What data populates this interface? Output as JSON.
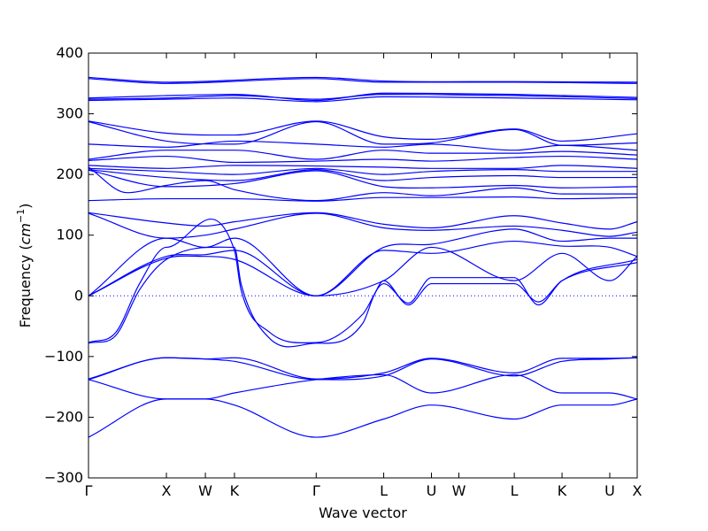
{
  "chart_data": {
    "type": "line",
    "title": "",
    "xlabel": "Wave vector",
    "ylabel": "Frequency (cm⁻¹)",
    "ylabel_parts": {
      "prefix": "Frequency (",
      "unit": "cm",
      "exponent": "−1",
      "suffix": ")"
    },
    "ylim": [
      -300,
      400
    ],
    "yticks": [
      -300,
      -200,
      -100,
      0,
      100,
      200,
      300,
      400
    ],
    "xlim": [
      0,
      100
    ],
    "xticks": [
      {
        "label": "Γ",
        "x": 0
      },
      {
        "label": "X",
        "x": 14.2
      },
      {
        "label": "W",
        "x": 21.3
      },
      {
        "label": "K",
        "x": 26.6
      },
      {
        "label": "Γ",
        "x": 41.5
      },
      {
        "label": "L",
        "x": 53.8
      },
      {
        "label": "U",
        "x": 62.5
      },
      {
        "label": "W",
        "x": 67.5
      },
      {
        "label": "L",
        "x": 77.6
      },
      {
        "label": "K",
        "x": 86.3
      },
      {
        "label": "U",
        "x": 95.0
      },
      {
        "label": "X",
        "x": 100
      }
    ],
    "zero_line": true,
    "grid": false,
    "legend": "none",
    "series_color": "#0000ff",
    "band_groups": [
      {
        "name": "top",
        "bands": [
          {
            "x": [
              0,
              14.2,
              41.5,
              53.8,
              77.6,
              100
            ],
            "y": [
              360,
              352,
              360,
              354,
              353,
              352
            ]
          },
          {
            "x": [
              0,
              14.2,
              41.5,
              53.8,
              77.6,
              100
            ],
            "y": [
              358,
              350,
              358,
              352,
              352,
              350
            ]
          }
        ]
      },
      {
        "name": "upper-mid",
        "bands": [
          {
            "x": [
              0,
              14.2,
              26.6,
              41.5,
              53.8,
              77.6,
              100
            ],
            "y": [
              326,
              330,
              332,
              322,
              334,
              332,
              327
            ]
          },
          {
            "x": [
              0,
              14.2,
              26.6,
              41.5,
              53.8,
              77.6,
              100
            ],
            "y": [
              324,
              326,
              330,
              324,
              332,
              330,
              325
            ]
          },
          {
            "x": [
              0,
              14.2,
              26.6,
              41.5,
              53.8,
              77.6,
              100
            ],
            "y": [
              322,
              324,
              326,
              320,
              328,
              326,
              323
            ]
          }
        ]
      },
      {
        "name": "optical",
        "bands": [
          {
            "x": [
              0,
              14.2,
              26.6,
              41.5,
              53.8,
              62.5,
              77.6,
              86.3,
              100
            ],
            "y": [
              288,
              268,
              265,
              288,
              262,
              258,
              275,
              255,
              267
            ]
          },
          {
            "x": [
              0,
              14.2,
              26.6,
              41.5,
              53.8,
              62.5,
              77.6,
              86.3,
              100
            ],
            "y": [
              287,
              255,
              250,
              287,
              250,
              252,
              274,
              248,
              252
            ]
          },
          {
            "x": [
              0,
              14.2,
              26.6,
              41.5,
              53.8,
              62.5,
              77.6,
              86.3,
              100
            ],
            "y": [
              250,
              245,
              255,
              250,
              245,
              250,
              240,
              248,
              240
            ]
          },
          {
            "x": [
              0,
              14.2,
              26.6,
              41.5,
              53.8,
              62.5,
              77.6,
              86.3,
              100
            ],
            "y": [
              225,
              240,
              240,
              225,
              240,
              235,
              235,
              238,
              232
            ]
          },
          {
            "x": [
              0,
              14.2,
              26.6,
              41.5,
              53.8,
              62.5,
              77.6,
              86.3,
              100
            ],
            "y": [
              223,
              230,
              220,
              222,
              225,
              222,
              228,
              230,
              225
            ]
          },
          {
            "x": [
              0,
              14.2,
              26.6,
              41.5,
              53.8,
              62.5,
              77.6,
              86.3,
              100
            ],
            "y": [
              215,
              210,
              215,
              214,
              212,
              210,
              210,
              215,
              210
            ]
          },
          {
            "x": [
              0,
              14.2,
              26.6,
              41.5,
              53.8,
              62.5,
              77.6,
              86.3,
              100
            ],
            "y": [
              210,
              205,
              200,
              210,
              200,
              205,
              208,
              205,
              205
            ]
          },
          {
            "x": [
              0,
              14.2,
              26.6,
              41.5,
              53.8,
              62.5,
              77.6,
              86.3,
              100
            ],
            "y": [
              208,
              195,
              190,
              208,
              190,
              195,
              198,
              195,
              195
            ]
          },
          {
            "x": [
              0,
              14.2,
              26.6,
              41.5,
              53.8,
              62.5,
              77.6,
              86.3,
              100
            ],
            "y": [
              207,
              180,
              185,
              206,
              180,
              178,
              182,
              178,
              180
            ]
          },
          {
            "x": [
              0,
              7.0,
              14.2,
              21.3,
              26.6,
              41.5,
              53.8,
              62.5,
              77.6,
              86.3,
              100
            ],
            "y": [
              212,
              170,
              182,
              190,
              175,
              157,
              170,
              165,
              178,
              168,
              168
            ]
          },
          {
            "x": [
              0,
              14.2,
              26.6,
              41.5,
              53.8,
              62.5,
              77.6,
              86.3,
              100
            ],
            "y": [
              157,
              160,
              160,
              156,
              162,
              162,
              163,
              160,
              162
            ]
          }
        ]
      },
      {
        "name": "acoustic",
        "bands": [
          {
            "x": [
              0,
              14.2,
              21.3,
              26.6,
              41.5,
              53.8,
              62.5,
              77.6,
              86.3,
              95.0,
              100
            ],
            "y": [
              137,
              120,
              115,
              122,
              137,
              118,
              112,
              132,
              120,
              110,
              122
            ]
          },
          {
            "x": [
              0,
              14.2,
              21.3,
              26.6,
              41.5,
              53.8,
              62.5,
              77.6,
              86.3,
              95.0,
              100
            ],
            "y": [
              136,
              95,
              100,
              110,
              136,
              112,
              108,
              115,
              108,
              98,
              105
            ]
          },
          {
            "x": [
              0,
              14.2,
              21.3,
              26.6,
              41.5,
              53.8,
              62.5,
              77.6,
              86.3,
              95.0,
              100
            ],
            "y": [
              0,
              95,
              80,
              95,
              0,
              80,
              85,
              110,
              90,
              95,
              95
            ]
          },
          {
            "x": [
              0,
              14.2,
              21.3,
              26.6,
              41.5,
              53.8,
              62.5,
              77.6,
              86.3,
              95.0,
              100
            ],
            "y": [
              0,
              65,
              68,
              75,
              0,
              75,
              70,
              90,
              82,
              80,
              65
            ]
          },
          {
            "x": [
              0,
              14.2,
              21.3,
              26.6,
              41.5,
              53.8,
              62.5,
              77.6,
              86.3,
              95.0,
              100
            ],
            "y": [
              0,
              62,
              65,
              60,
              0,
              25,
              80,
              25,
              70,
              25,
              65
            ]
          }
        ]
      },
      {
        "name": "unstable",
        "bands": [
          {
            "x": [
              0,
              5.0,
              9.3,
              14.2,
              26.6,
              27.8,
              33.0,
              41.5,
              50.0,
              52.0,
              53.8,
              58.3,
              62.5,
              77.6,
              82.0,
              86.3,
              100
            ],
            "y": [
              -78,
              -65,
              10,
              60,
              80,
              20,
              -70,
              -78,
              -45,
              0,
              25,
              -15,
              20,
              20,
              -10,
              25,
              55
            ]
          },
          {
            "x": [
              0,
              5.0,
              9.3,
              14.2,
              26.6,
              27.8,
              33.0,
              41.5,
              50.0,
              53.8,
              58.3,
              62.5,
              77.6,
              82.0,
              86.3,
              100
            ],
            "y": [
              -77,
              -60,
              20,
              80,
              75,
              10,
              -60,
              -77,
              -30,
              20,
              -12,
              30,
              30,
              -15,
              25,
              60
            ]
          }
        ]
      },
      {
        "name": "negative",
        "bands": [
          {
            "x": [
              0,
              14.2,
              21.3,
              26.6,
              41.5,
              53.8,
              62.5,
              77.6,
              86.3,
              95.0,
              100
            ],
            "y": [
              -137,
              -102,
              -104,
              -102,
              -137,
              -127,
              -103,
              -127,
              -103,
              -103,
              -102
            ]
          },
          {
            "x": [
              0,
              14.2,
              21.3,
              26.6,
              41.5,
              53.8,
              62.5,
              77.6,
              86.3,
              95.0,
              100
            ],
            "y": [
              -138,
              -170,
              -170,
              -160,
              -138,
              -130,
              -160,
              -130,
              -160,
              -160,
              -170
            ]
          },
          {
            "x": [
              0,
              14.2,
              21.3,
              26.6,
              41.5,
              53.8,
              62.5,
              77.6,
              86.3,
              95.0,
              100
            ],
            "y": [
              -138,
              -102,
              -104,
              -108,
              -138,
              -132,
              -104,
              -132,
              -108,
              -104,
              -102
            ]
          },
          {
            "x": [
              0,
              14.2,
              21.3,
              26.6,
              41.5,
              53.8,
              62.5,
              77.6,
              86.3,
              95.0,
              100
            ],
            "y": [
              -233,
              -170,
              -170,
              -180,
              -233,
              -203,
              -180,
              -203,
              -180,
              -180,
              -170
            ]
          }
        ]
      }
    ]
  }
}
